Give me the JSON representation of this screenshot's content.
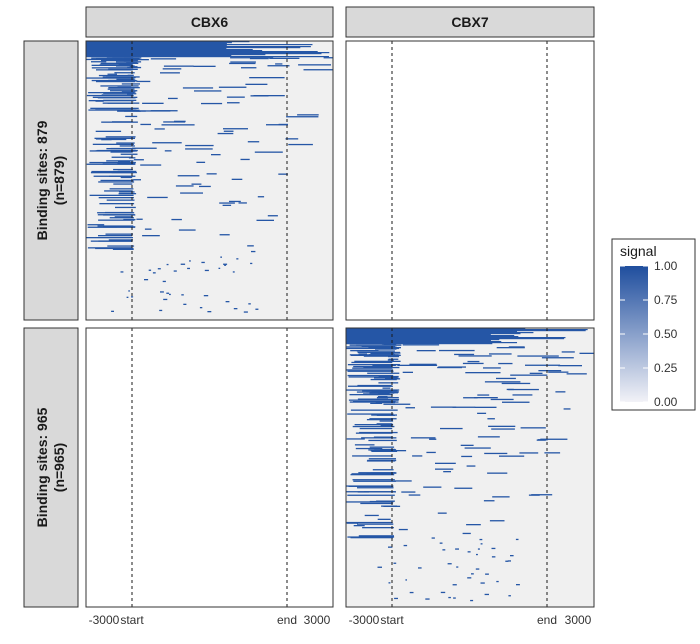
{
  "chart_data": {
    "type": "heatmap",
    "columns": [
      "CBX6",
      "CBX7"
    ],
    "rows": [
      "Binding sites: 879\n(n=879)",
      "Binding sites: 965\n(n=965)"
    ],
    "row_labels": [
      {
        "line1": "Binding sites: 879",
        "line2": "(n=879)",
        "n": 879
      },
      {
        "line1": "Binding sites: 965",
        "line2": "(n=965)",
        "n": 965
      }
    ],
    "x_ticks": [
      "-3000",
      "start",
      "end",
      "3000"
    ],
    "x_tick_values": [
      -3000,
      0,
      1,
      3000
    ],
    "x_range": [
      -3000,
      3000
    ],
    "reference_lines": [
      "start",
      "end"
    ],
    "panels": [
      {
        "column": "CBX6",
        "row": 0,
        "has_signal": true,
        "n": 879
      },
      {
        "column": "CBX7",
        "row": 0,
        "has_signal": false,
        "n": 879
      },
      {
        "column": "CBX6",
        "row": 1,
        "has_signal": false,
        "n": 965
      },
      {
        "column": "CBX7",
        "row": 1,
        "has_signal": true,
        "n": 965
      }
    ],
    "legend": {
      "title": "signal",
      "ticks": [
        "1.00",
        "0.75",
        "0.50",
        "0.25",
        "0.00"
      ],
      "tick_values": [
        1.0,
        0.75,
        0.5,
        0.25,
        0.0
      ],
      "range": [
        0,
        1
      ],
      "low_color": "#f0f0f0",
      "high_color": "#1f4e9e"
    },
    "colors": {
      "background": "#f0f0f0",
      "signal": "#2556a6",
      "strip": "#d9d9d9"
    }
  }
}
